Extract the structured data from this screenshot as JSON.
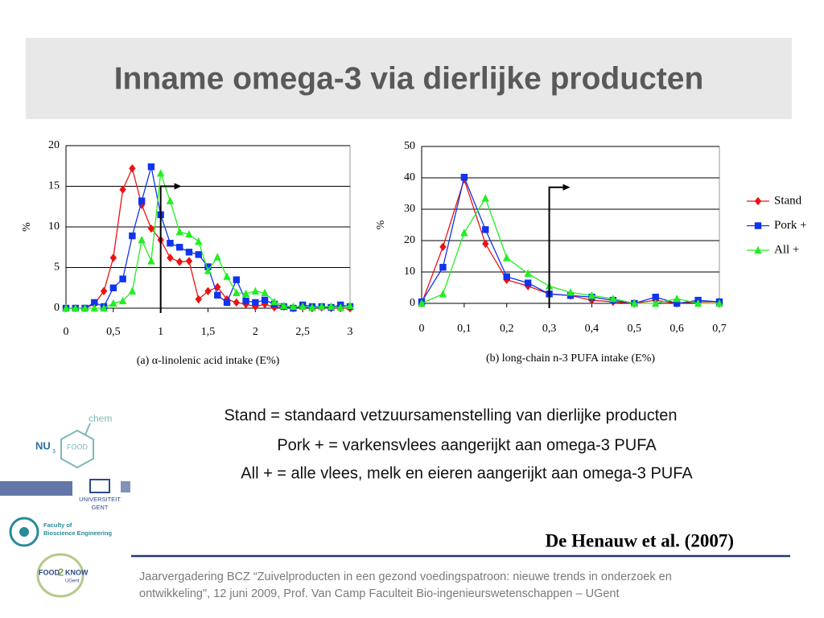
{
  "title": "Inname omega-3 via dierlijke producten",
  "chart_data": [
    {
      "type": "line",
      "x": [
        0,
        0.1,
        0.2,
        0.3,
        0.4,
        0.5,
        0.6,
        0.7,
        0.8,
        0.9,
        1.0,
        1.1,
        1.2,
        1.3,
        1.4,
        1.5,
        1.6,
        1.7,
        1.8,
        1.9,
        2.0,
        2.1,
        2.2,
        2.3,
        2.4,
        2.5,
        2.6,
        2.7,
        2.8,
        2.9,
        3.0
      ],
      "series": [
        {
          "color": "#ee1111",
          "marker": "diamond",
          "values": [
            0,
            0,
            0,
            0.5,
            2.1,
            6.2,
            14.6,
            17.2,
            12.7,
            9.8,
            8.4,
            6.2,
            5.7,
            5.8,
            1.1,
            2.1,
            2.6,
            1.1,
            0.7,
            0.5,
            0.2,
            0.5,
            0.1,
            0.2,
            0,
            0.2,
            0,
            0.1,
            0,
            0,
            0
          ]
        },
        {
          "color": "#1133ee",
          "marker": "square",
          "values": [
            0,
            0,
            0,
            0.7,
            0.2,
            2.5,
            3.6,
            8.9,
            13.2,
            17.4,
            11.5,
            8,
            7.5,
            6.9,
            6.6,
            5.1,
            1.6,
            0.7,
            3.5,
            0.9,
            0.7,
            1,
            0.5,
            0.2,
            0,
            0.4,
            0.2,
            0.2,
            0.1,
            0.4,
            0.2
          ]
        },
        {
          "color": "#22ee22",
          "marker": "triangle",
          "values": [
            0,
            0,
            0,
            0,
            0,
            0.6,
            0.9,
            2.1,
            8.4,
            5.8,
            16.6,
            13.2,
            9.4,
            9.1,
            8.2,
            4.6,
            6.3,
            3.9,
            1.9,
            1.8,
            2.1,
            1.9,
            0.8,
            0.3,
            0.2,
            0.2,
            0.1,
            0.2,
            0.2,
            0.1,
            0.3
          ]
        }
      ],
      "xlim": [
        0,
        3
      ],
      "xticks": [
        0,
        {
          "value": 0.5,
          "label": "0,5"
        },
        1,
        {
          "value": 1.5,
          "label": "1,5"
        },
        2,
        {
          "value": 2.5,
          "label": "2,5"
        },
        3
      ],
      "ylim": [
        0,
        20
      ],
      "yticks": [
        0,
        5,
        10,
        15,
        20
      ],
      "grid": true,
      "ylabel": "%",
      "xlabel": "(a) α-linolenic acid intake (E%)",
      "threshold": {
        "x": 1,
        "y": 15
      }
    },
    {
      "type": "line",
      "x": [
        0,
        0.05,
        0.1,
        0.15,
        0.2,
        0.25,
        0.3,
        0.35,
        0.4,
        0.45,
        0.5,
        0.55,
        0.6,
        0.65,
        0.7
      ],
      "series": [
        {
          "name": "Stand",
          "color": "#ee1111",
          "marker": "diamond",
          "values": [
            0,
            18,
            39.5,
            19,
            7.5,
            5.5,
            3,
            2.5,
            1,
            0.5,
            0,
            1,
            0,
            0.5,
            0.5
          ]
        },
        {
          "name": "Pork +",
          "color": "#1133ee",
          "marker": "square",
          "values": [
            0.5,
            11.5,
            40.2,
            23.5,
            8.5,
            6.5,
            3,
            2.5,
            2,
            1,
            0,
            2,
            0,
            1,
            0.5
          ]
        },
        {
          "name": "All +",
          "color": "#22ee22",
          "marker": "triangle",
          "values": [
            0,
            3,
            22.5,
            33.5,
            14.5,
            9.5,
            5.5,
            3.5,
            2.5,
            1.5,
            0,
            0,
            1.5,
            0,
            0
          ]
        }
      ],
      "xlim": [
        0,
        0.7
      ],
      "xticks": [
        0,
        {
          "value": 0.1,
          "label": "0,1"
        },
        {
          "value": 0.2,
          "label": "0,2"
        },
        {
          "value": 0.3,
          "label": "0,3"
        },
        {
          "value": 0.4,
          "label": "0,4"
        },
        {
          "value": 0.5,
          "label": "0,5"
        },
        {
          "value": 0.6,
          "label": "0,6"
        },
        {
          "value": 0.7,
          "label": "0,7"
        }
      ],
      "ylim": [
        0,
        50
      ],
      "yticks": [
        0,
        10,
        20,
        30,
        40,
        50
      ],
      "grid": true,
      "ylabel": "%",
      "xlabel": "(b) long-chain n-3 PUFA intake (E%)",
      "legend": "right",
      "threshold": {
        "x": 0.3,
        "y": 37
      }
    }
  ],
  "notes": [
    "Stand = standaard vetzuursamenstelling van dierlijke producten",
    "Pork + = varkensvlees aangerijkt aan omega-3 PUFA",
    "All + = alle vlees, melk en eieren aangerijkt aan omega-3 PUFA"
  ],
  "citation": "De Henauw et al. (2007)",
  "footer": [
    "Jaarvergadering BCZ “Zuivelproducten in een gezond voedingspatroon: nieuwe trends in onderzoek en",
    "ontwikkeling\", 12 juni 2009, Prof. Van Camp  Faculteit Bio-ingenieurswetenschappen – UGent"
  ],
  "logos": {
    "nutrichem": [
      "NU",
      "3",
      "FOOD",
      "chem"
    ],
    "ugent": [
      "UNIVERSITEIT",
      "GENT"
    ],
    "faculty": [
      "Faculty of",
      "Bioscience Engineering"
    ],
    "food2know": [
      "FOOD",
      "2",
      "KNOW",
      "UGent"
    ]
  }
}
